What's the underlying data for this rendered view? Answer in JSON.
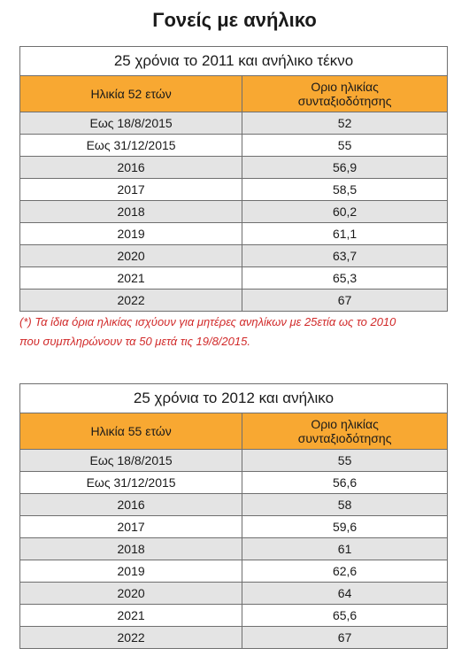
{
  "page_title": "Γονείς με ανήλικο",
  "table1": {
    "caption": "25 χρόνια το 2011 και ανήλικο τέκνο",
    "col_age": "Ηλικία 52 ετών",
    "col_limit_line1": "Οριο ηλικίας",
    "col_limit_line2": "συνταξιοδότησης",
    "rows": [
      {
        "date": "Εως 18/8/2015",
        "value": "52"
      },
      {
        "date": "Εως 31/12/2015",
        "value": "55"
      },
      {
        "date": "2016",
        "value": "56,9"
      },
      {
        "date": "2017",
        "value": "58,5"
      },
      {
        "date": "2018",
        "value": "60,2"
      },
      {
        "date": "2019",
        "value": "61,1"
      },
      {
        "date": "2020",
        "value": "63,7"
      },
      {
        "date": "2021",
        "value": "65,3"
      },
      {
        "date": "2022",
        "value": "67"
      }
    ]
  },
  "footnote": {
    "line1": "(*) Τα ίδια όρια ηλικίας ισχύουν για μητέρες ανηλίκων με 25ετία ως το 2010",
    "line2": "που συμπληρώνουν τα 50 μετά τις 19/8/2015."
  },
  "table2": {
    "caption": "25 χρόνια το 2012 και ανήλικο",
    "col_age": "Ηλικία 55 ετών",
    "col_limit_line1": "Οριο ηλικίας",
    "col_limit_line2": "συνταξιοδότησης",
    "rows": [
      {
        "date": "Εως 18/8/2015",
        "value": "55"
      },
      {
        "date": "Εως 31/12/2015",
        "value": "56,6"
      },
      {
        "date": "2016",
        "value": "58"
      },
      {
        "date": "2017",
        "value": "59,6"
      },
      {
        "date": "2018",
        "value": "61"
      },
      {
        "date": "2019",
        "value": "62,6"
      },
      {
        "date": "2020",
        "value": "64"
      },
      {
        "date": "2021",
        "value": "65,6"
      },
      {
        "date": "2022",
        "value": "67"
      }
    ]
  }
}
